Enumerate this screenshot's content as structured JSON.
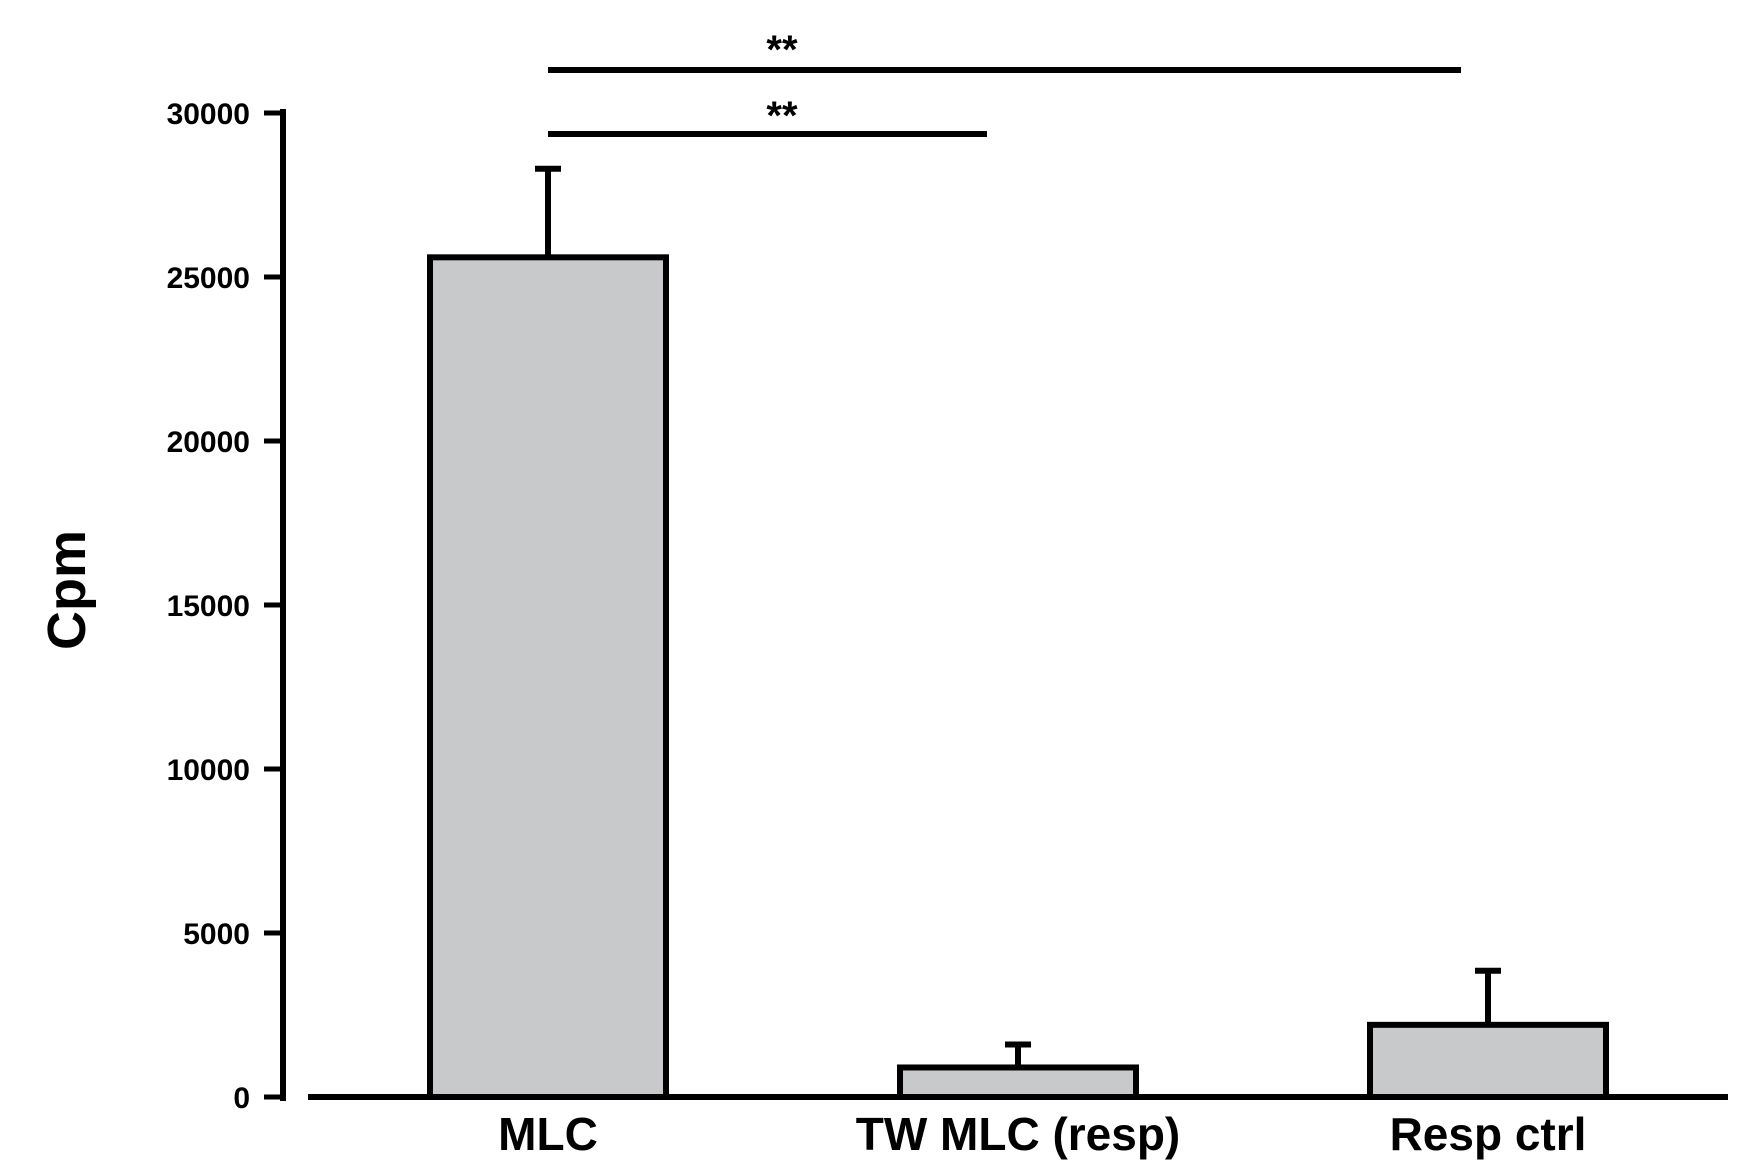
{
  "chart_data": {
    "type": "bar",
    "categories": [
      "MLC",
      "TW MLC (resp)",
      "Resp ctrl"
    ],
    "values": [
      25600,
      900,
      2200
    ],
    "errors": [
      2700,
      700,
      1650
    ],
    "ylabel": "Cpm",
    "xlabel": "",
    "ylim": [
      0,
      30000
    ],
    "yticks": [
      0,
      5000,
      10000,
      15000,
      20000,
      25000,
      30000
    ],
    "ytick_labels": [
      "0",
      "5000",
      "10000",
      "15000",
      "20000",
      "25000",
      "30000"
    ],
    "grid": false,
    "bar_color": "#c8c9cb",
    "edge_color": "#000000",
    "significance": [
      {
        "from": "MLC",
        "to": "TW MLC (resp)",
        "label": "**"
      },
      {
        "from": "MLC",
        "to": "Resp ctrl",
        "label": "**"
      }
    ]
  }
}
